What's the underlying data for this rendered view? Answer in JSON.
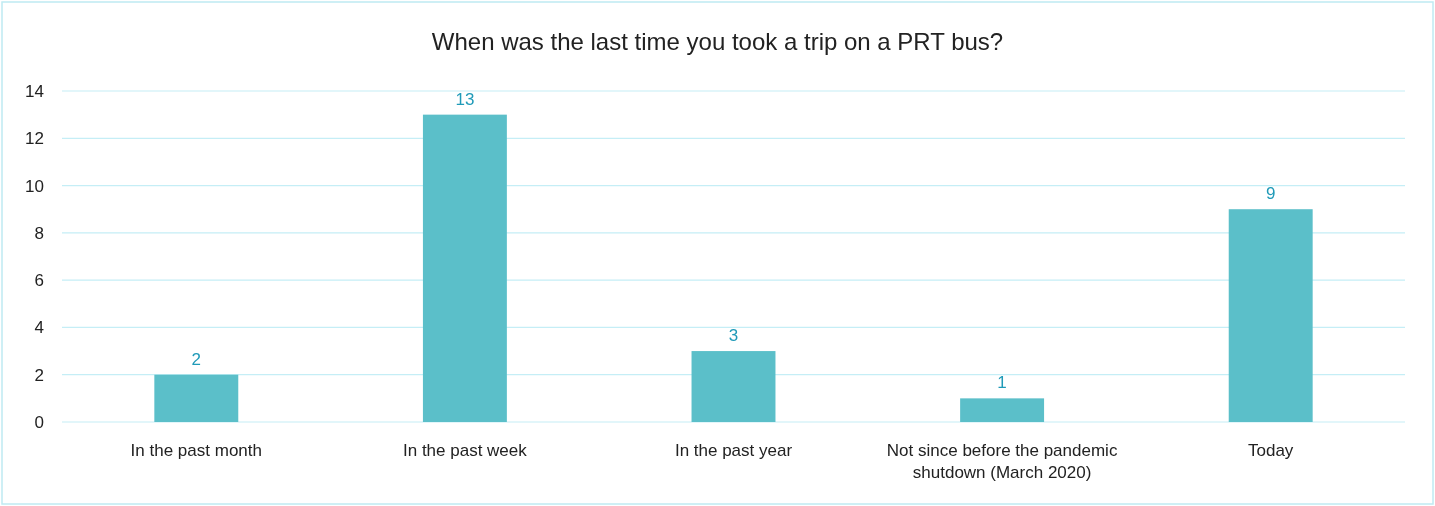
{
  "chart_data": {
    "type": "bar",
    "title": "When was the last time you took a trip on a PRT bus?",
    "categories": [
      "In the past month",
      "In the past week",
      "In the past year",
      "Not since before the pandemic shutdown (March 2020)",
      "Today"
    ],
    "values": [
      2,
      13,
      3,
      1,
      9
    ],
    "color": "#5bbfc9",
    "ylim": [
      0,
      14
    ],
    "yticks": [
      0,
      2,
      4,
      6,
      8,
      10,
      12,
      14
    ],
    "grid": "y",
    "data_labels": true
  }
}
